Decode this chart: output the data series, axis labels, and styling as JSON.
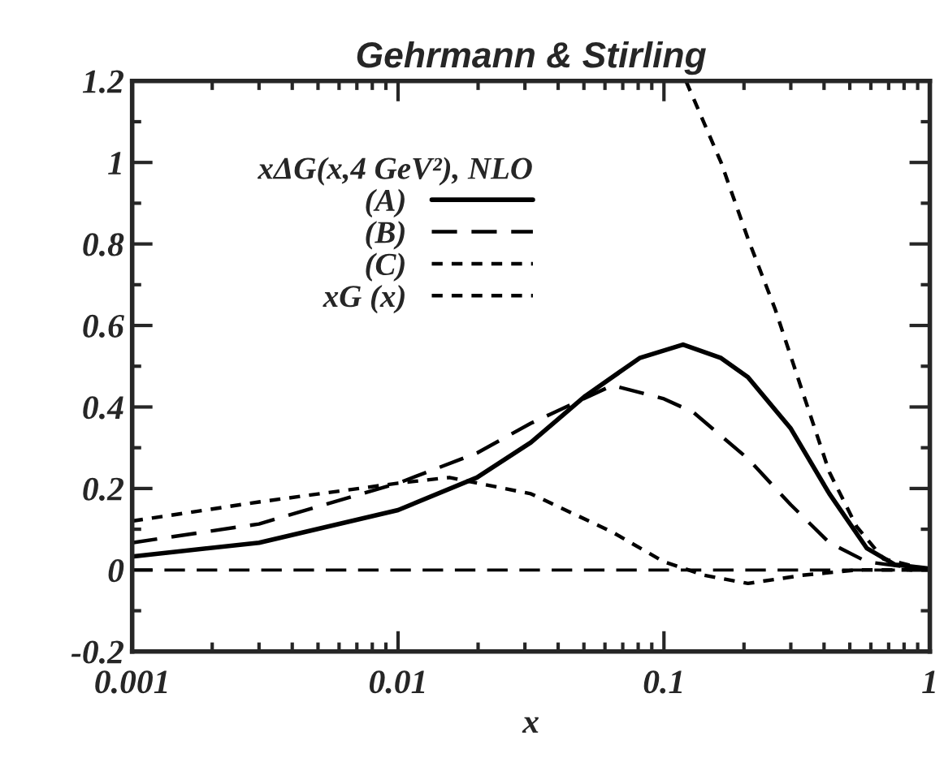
{
  "chart_data": {
    "type": "line",
    "title": "Gehrmann & Stirling",
    "xlabel": "x",
    "legend_title": "xΔG(x,4 GeV²), NLO",
    "legend": "top",
    "log": "x",
    "grid": false,
    "marker": "none",
    "xlim": [
      0.001,
      1
    ],
    "xticks": [
      0.001,
      0.01,
      0.1,
      1
    ],
    "ylim": [
      -0.2,
      1.2
    ],
    "yticks": [
      -0.2,
      0,
      0.2,
      0.4,
      0.6,
      0.8,
      1,
      1.2
    ],
    "ref_lines": [
      {
        "axis": "y",
        "value": 0,
        "line_style": "dashed",
        "color": "#000000"
      }
    ],
    "series": [
      {
        "name": "(A)",
        "color": "#000000",
        "line_style": "solid",
        "x": [
          0.001,
          0.003,
          0.01,
          0.0198,
          0.0316,
          0.0506,
          0.081,
          0.118,
          0.164,
          0.207,
          0.3,
          0.419,
          0.58,
          0.74,
          1
        ],
        "values": [
          0.033,
          0.067,
          0.147,
          0.227,
          0.313,
          0.427,
          0.52,
          0.553,
          0.52,
          0.473,
          0.347,
          0.187,
          0.053,
          0.013,
          0.003
        ]
      },
      {
        "name": "(B)",
        "color": "#000000",
        "line_style": "dashed",
        "x": [
          0.001,
          0.003,
          0.01,
          0.0198,
          0.0316,
          0.064,
          0.1,
          0.129,
          0.207,
          0.3,
          0.419,
          0.58,
          1
        ],
        "values": [
          0.067,
          0.113,
          0.213,
          0.287,
          0.36,
          0.453,
          0.42,
          0.387,
          0.273,
          0.16,
          0.067,
          0.02,
          0
        ]
      },
      {
        "name": "(C)",
        "color": "#000000",
        "line_style": "dotted",
        "x": [
          0.001,
          0.003,
          0.01,
          0.0156,
          0.0316,
          0.064,
          0.1,
          0.142,
          0.207,
          0.331,
          0.53,
          1
        ],
        "values": [
          0.12,
          0.167,
          0.213,
          0.227,
          0.187,
          0.093,
          0.02,
          -0.013,
          -0.033,
          -0.013,
          0,
          0
        ]
      },
      {
        "name": "xG (x)",
        "color": "#000000",
        "line_style": "dotted",
        "x": [
          0.121,
          0.164,
          0.207,
          0.262,
          0.331,
          0.419,
          0.53,
          0.67,
          1
        ],
        "values": [
          1.2,
          1.0,
          0.813,
          0.64,
          0.44,
          0.24,
          0.107,
          0.027,
          0
        ]
      }
    ]
  }
}
